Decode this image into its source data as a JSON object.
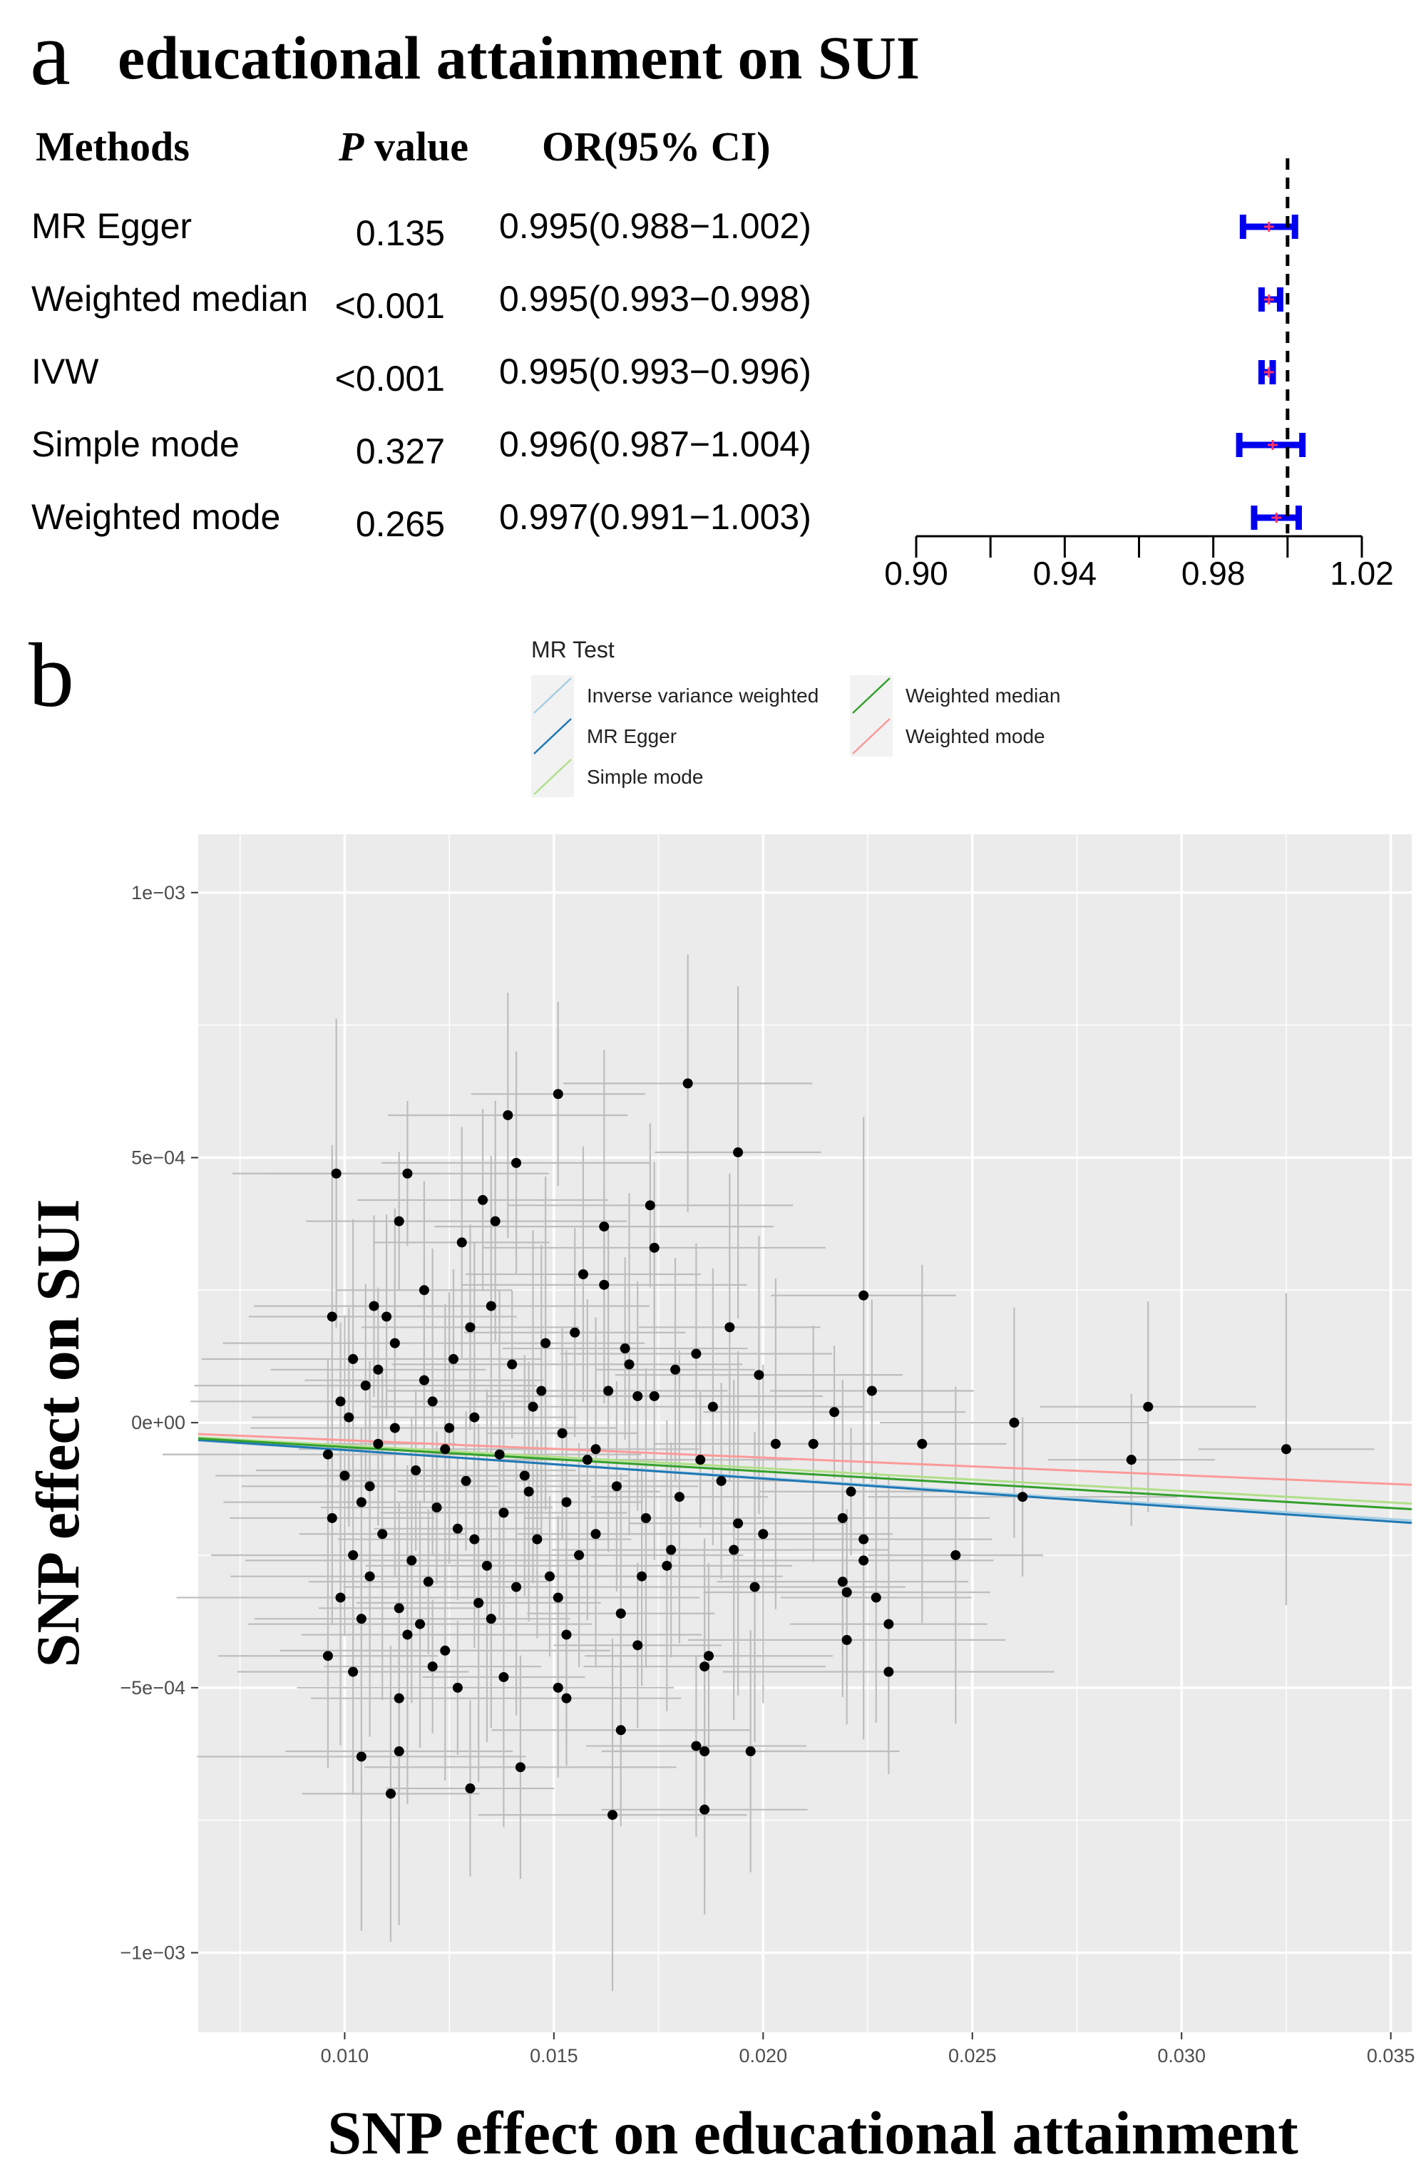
{
  "panel_a": {
    "label": "a",
    "title": "educational attainment on SUI",
    "headers": {
      "methods": "Methods",
      "p_italic": "P",
      "p_rest": " value",
      "or": "OR(95% CI)"
    },
    "rows": [
      {
        "method": "MR Egger",
        "p": "0.135",
        "or_text": "0.995(0.988−1.002)",
        "or": 0.995,
        "lo": 0.988,
        "hi": 1.002
      },
      {
        "method": "Weighted median",
        "p": "<0.001",
        "or_text": "0.995(0.993−0.998)",
        "or": 0.995,
        "lo": 0.993,
        "hi": 0.998
      },
      {
        "method": "IVW",
        "p": "<0.001",
        "or_text": "0.995(0.993−0.996)",
        "or": 0.995,
        "lo": 0.993,
        "hi": 0.996
      },
      {
        "method": "Simple mode",
        "p": "0.327",
        "or_text": "0.996(0.987−1.004)",
        "or": 0.996,
        "lo": 0.987,
        "hi": 1.004
      },
      {
        "method": "Weighted mode",
        "p": "0.265",
        "or_text": "0.997(0.991−1.003)",
        "or": 0.997,
        "lo": 0.991,
        "hi": 1.003
      }
    ],
    "axis": {
      "min": 0.9,
      "max": 1.02,
      "ref": 1.0,
      "ticks": [
        0.9,
        0.92,
        0.94,
        0.96,
        0.98,
        1.0,
        1.02
      ],
      "labels": [
        "0.90",
        "0.94",
        "0.98",
        "1.02"
      ]
    },
    "colors": {
      "ci": "#0000ee",
      "point": "#ff3366",
      "axis": "#000000"
    }
  },
  "panel_b": {
    "label": "b",
    "legend": {
      "title": "MR Test",
      "items": [
        {
          "name": "Inverse variance weighted",
          "color": "#a6cee3"
        },
        {
          "name": "MR Egger",
          "color": "#1f78b4"
        },
        {
          "name": "Simple mode",
          "color": "#b2df8a"
        },
        {
          "name": "Weighted median",
          "color": "#33a02c"
        },
        {
          "name": "Weighted mode",
          "color": "#fb9a99"
        }
      ]
    },
    "xlabel": "SNP effect on educational attainment",
    "ylabel": "SNP effect on SUI",
    "colors": {
      "panel_bg": "#ebebeb",
      "grid": "#ffffff",
      "errorbar": "#bdbdbd",
      "point": "#000000"
    }
  },
  "chart_data": [
    {
      "type": "forest",
      "title": "educational attainment on SUI",
      "categories": [
        "MR Egger",
        "Weighted median",
        "IVW",
        "Simple mode",
        "Weighted mode"
      ],
      "values": [
        0.995,
        0.995,
        0.995,
        0.996,
        0.997
      ],
      "ci_low": [
        0.988,
        0.993,
        0.993,
        0.987,
        0.991
      ],
      "ci_high": [
        1.002,
        0.998,
        0.996,
        1.004,
        1.003
      ],
      "xlim": [
        0.9,
        1.02
      ],
      "reference_line": 1.0
    },
    {
      "type": "scatter",
      "title": "",
      "xlabel": "SNP effect on educational attainment",
      "ylabel": "SNP effect on SUI",
      "xlim": [
        0.0065,
        0.0355
      ],
      "ylim": [
        -0.00115,
        0.00111
      ],
      "x_ticks": [
        0.01,
        0.015,
        0.02,
        0.025,
        0.03,
        0.035
      ],
      "x_tick_labels": [
        "0.010",
        "0.015",
        "0.020",
        "0.025",
        "0.030",
        "0.035"
      ],
      "y_ticks": [
        0.001,
        0.0005,
        0,
        -0.0005,
        -0.001
      ],
      "y_tick_labels": [
        "1e−03",
        "5e−04",
        "0e+00",
        "−5e−04",
        "−1e−03"
      ],
      "grid": true,
      "legend_position": "top",
      "lines": [
        {
          "name": "Inverse variance weighted",
          "intercept": 0,
          "slope": -0.0052
        },
        {
          "name": "MR Egger",
          "intercept": 2.5e-06,
          "slope": -0.0054
        },
        {
          "name": "Simple mode",
          "intercept": 0,
          "slope": -0.0043
        },
        {
          "name": "Weighted median",
          "intercept": 0,
          "slope": -0.0046
        },
        {
          "name": "Weighted mode",
          "intercept": 0,
          "slope": -0.0033
        }
      ],
      "points": [
        {
          "x": 0.0182,
          "y": 0.00064
        },
        {
          "x": 0.0151,
          "y": 0.00062
        },
        {
          "x": 0.0139,
          "y": 0.00058
        },
        {
          "x": 0.0194,
          "y": 0.00051
        },
        {
          "x": 0.0141,
          "y": 0.00049
        },
        {
          "x": 0.0098,
          "y": 0.00047
        },
        {
          "x": 0.0115,
          "y": 0.00047
        },
        {
          "x": 0.0133,
          "y": 0.00042
        },
        {
          "x": 0.0173,
          "y": 0.00041
        },
        {
          "x": 0.0136,
          "y": 0.00038
        },
        {
          "x": 0.0113,
          "y": 0.00038
        },
        {
          "x": 0.0162,
          "y": 0.00037
        },
        {
          "x": 0.0128,
          "y": 0.00034
        },
        {
          "x": 0.0174,
          "y": 0.00033
        },
        {
          "x": 0.0157,
          "y": 0.00028
        },
        {
          "x": 0.0162,
          "y": 0.00026
        },
        {
          "x": 0.0224,
          "y": 0.00024
        },
        {
          "x": 0.0107,
          "y": 0.00022
        },
        {
          "x": 0.011,
          "y": 0.0002
        },
        {
          "x": 0.0192,
          "y": 0.00018
        },
        {
          "x": 0.0155,
          "y": 0.00017
        },
        {
          "x": 0.0097,
          "y": 0.0002
        },
        {
          "x": 0.0148,
          "y": 0.00015
        },
        {
          "x": 0.0167,
          "y": 0.00014
        },
        {
          "x": 0.0184,
          "y": 0.00013
        },
        {
          "x": 0.0102,
          "y": 0.00012
        },
        {
          "x": 0.0126,
          "y": 0.00012
        },
        {
          "x": 0.014,
          "y": 0.00011
        },
        {
          "x": 0.0179,
          "y": 0.0001
        },
        {
          "x": 0.0199,
          "y": 9e-05
        },
        {
          "x": 0.0105,
          "y": 7e-05
        },
        {
          "x": 0.0119,
          "y": 8e-05
        },
        {
          "x": 0.0163,
          "y": 6e-05
        },
        {
          "x": 0.017,
          "y": 5e-05
        },
        {
          "x": 0.0226,
          "y": 6e-05
        },
        {
          "x": 0.0099,
          "y": 4e-05
        },
        {
          "x": 0.0121,
          "y": 4e-05
        },
        {
          "x": 0.0145,
          "y": 3e-05
        },
        {
          "x": 0.0174,
          "y": 5e-05
        },
        {
          "x": 0.0188,
          "y": 3e-05
        },
        {
          "x": 0.0217,
          "y": 2e-05
        },
        {
          "x": 0.0292,
          "y": 3e-05
        },
        {
          "x": 0.0101,
          "y": 1e-05
        },
        {
          "x": 0.0112,
          "y": -1e-05
        },
        {
          "x": 0.0131,
          "y": 1e-05
        },
        {
          "x": 0.0152,
          "y": -2e-05
        },
        {
          "x": 0.026,
          "y": 0.0
        },
        {
          "x": 0.0238,
          "y": -4e-05
        },
        {
          "x": 0.0203,
          "y": -4e-05
        },
        {
          "x": 0.0212,
          "y": -4e-05
        },
        {
          "x": 0.0325,
          "y": -5e-05
        },
        {
          "x": 0.0096,
          "y": -6e-05
        },
        {
          "x": 0.0108,
          "y": -4e-05
        },
        {
          "x": 0.0124,
          "y": -5e-05
        },
        {
          "x": 0.0137,
          "y": -6e-05
        },
        {
          "x": 0.0158,
          "y": -7e-05
        },
        {
          "x": 0.0185,
          "y": -7e-05
        },
        {
          "x": 0.0288,
          "y": -7e-05
        },
        {
          "x": 0.01,
          "y": -0.0001
        },
        {
          "x": 0.0117,
          "y": -9e-05
        },
        {
          "x": 0.0129,
          "y": -0.00011
        },
        {
          "x": 0.0143,
          "y": -0.0001
        },
        {
          "x": 0.0165,
          "y": -0.00012
        },
        {
          "x": 0.019,
          "y": -0.00011
        },
        {
          "x": 0.0262,
          "y": -0.00014
        },
        {
          "x": 0.0221,
          "y": -0.00013
        },
        {
          "x": 0.0104,
          "y": -0.00015
        },
        {
          "x": 0.0122,
          "y": -0.00016
        },
        {
          "x": 0.0138,
          "y": -0.00017
        },
        {
          "x": 0.0153,
          "y": -0.00015
        },
        {
          "x": 0.0172,
          "y": -0.00018
        },
        {
          "x": 0.0194,
          "y": -0.00019
        },
        {
          "x": 0.0219,
          "y": -0.00018
        },
        {
          "x": 0.0097,
          "y": -0.00018
        },
        {
          "x": 0.0109,
          "y": -0.00021
        },
        {
          "x": 0.0127,
          "y": -0.0002
        },
        {
          "x": 0.0146,
          "y": -0.00022
        },
        {
          "x": 0.016,
          "y": -0.00021
        },
        {
          "x": 0.0178,
          "y": -0.00024
        },
        {
          "x": 0.02,
          "y": -0.00021
        },
        {
          "x": 0.0224,
          "y": -0.00022
        },
        {
          "x": 0.0246,
          "y": -0.00025
        },
        {
          "x": 0.0102,
          "y": -0.00025
        },
        {
          "x": 0.0116,
          "y": -0.00026
        },
        {
          "x": 0.0134,
          "y": -0.00027
        },
        {
          "x": 0.0156,
          "y": -0.00025
        },
        {
          "x": 0.0177,
          "y": -0.00027
        },
        {
          "x": 0.0193,
          "y": -0.00024
        },
        {
          "x": 0.0224,
          "y": -0.00026
        },
        {
          "x": 0.0106,
          "y": -0.00029
        },
        {
          "x": 0.012,
          "y": -0.0003
        },
        {
          "x": 0.0141,
          "y": -0.00031
        },
        {
          "x": 0.0171,
          "y": -0.00029
        },
        {
          "x": 0.0198,
          "y": -0.00031
        },
        {
          "x": 0.0219,
          "y": -0.0003
        },
        {
          "x": 0.0099,
          "y": -0.00033
        },
        {
          "x": 0.0113,
          "y": -0.00035
        },
        {
          "x": 0.0132,
          "y": -0.00034
        },
        {
          "x": 0.0151,
          "y": -0.00033
        },
        {
          "x": 0.022,
          "y": -0.00032
        },
        {
          "x": 0.0227,
          "y": -0.00033
        },
        {
          "x": 0.0104,
          "y": -0.00037
        },
        {
          "x": 0.0118,
          "y": -0.00038
        },
        {
          "x": 0.0135,
          "y": -0.00037
        },
        {
          "x": 0.0166,
          "y": -0.00036
        },
        {
          "x": 0.023,
          "y": -0.00038
        },
        {
          "x": 0.0115,
          "y": -0.0004
        },
        {
          "x": 0.0153,
          "y": -0.0004
        },
        {
          "x": 0.022,
          "y": -0.00041
        },
        {
          "x": 0.0096,
          "y": -0.00044
        },
        {
          "x": 0.0124,
          "y": -0.00043
        },
        {
          "x": 0.017,
          "y": -0.00042
        },
        {
          "x": 0.0187,
          "y": -0.00044
        },
        {
          "x": 0.0102,
          "y": -0.00047
        },
        {
          "x": 0.0121,
          "y": -0.00046
        },
        {
          "x": 0.0138,
          "y": -0.00048
        },
        {
          "x": 0.0186,
          "y": -0.00046
        },
        {
          "x": 0.023,
          "y": -0.00047
        },
        {
          "x": 0.0151,
          "y": -0.0005
        },
        {
          "x": 0.0153,
          "y": -0.00052
        },
        {
          "x": 0.0113,
          "y": -0.00052
        },
        {
          "x": 0.0127,
          "y": -0.0005
        },
        {
          "x": 0.0166,
          "y": -0.00058
        },
        {
          "x": 0.0184,
          "y": -0.00061
        },
        {
          "x": 0.0197,
          "y": -0.00062
        },
        {
          "x": 0.0186,
          "y": -0.00062
        },
        {
          "x": 0.0104,
          "y": -0.00063
        },
        {
          "x": 0.0113,
          "y": -0.00062
        },
        {
          "x": 0.0142,
          "y": -0.00065
        },
        {
          "x": 0.013,
          "y": -0.00069
        },
        {
          "x": 0.0111,
          "y": -0.0007
        },
        {
          "x": 0.0164,
          "y": -0.00074
        },
        {
          "x": 0.0186,
          "y": -0.00073
        },
        {
          "x": 0.0108,
          "y": 0.0001
        },
        {
          "x": 0.0125,
          "y": -1e-05
        },
        {
          "x": 0.0147,
          "y": 6e-05
        },
        {
          "x": 0.016,
          "y": -5e-05
        },
        {
          "x": 0.018,
          "y": -0.00014
        },
        {
          "x": 0.0112,
          "y": 0.00015
        },
        {
          "x": 0.013,
          "y": 0.00018
        },
        {
          "x": 0.0144,
          "y": -0.00013
        },
        {
          "x": 0.0119,
          "y": 0.00025
        },
        {
          "x": 0.0135,
          "y": 0.00022
        },
        {
          "x": 0.0106,
          "y": -0.00012
        },
        {
          "x": 0.0131,
          "y": -0.00022
        },
        {
          "x": 0.0149,
          "y": -0.00029
        },
        {
          "x": 0.0168,
          "y": 0.00011
        }
      ]
    }
  ]
}
